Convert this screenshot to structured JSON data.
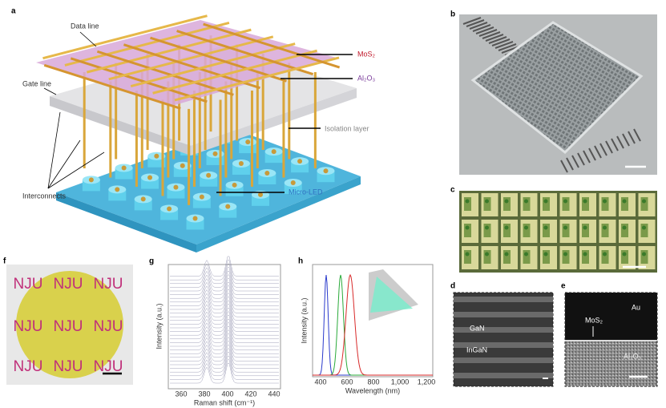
{
  "figure": {
    "panel_a": {
      "label": "a",
      "data_line": "Data line",
      "gate_line": "Gate line",
      "interconnects": "Interconnects",
      "mos2": "MoS₂",
      "al2o3": "Al₂O₃",
      "isolation": "Isolation layer",
      "micro_led": "Micro-LED"
    },
    "panel_b": {
      "label": "b"
    },
    "panel_c": {
      "label": "c"
    },
    "panel_d": {
      "label": "d",
      "gan": "GaN",
      "ingan": "InGaN"
    },
    "panel_e": {
      "label": "e",
      "au": "Au",
      "mos2": "MoS₂",
      "al2o3": "Al₂O₃"
    },
    "panel_f": {
      "label": "f",
      "logo": "NJU"
    },
    "panel_g": {
      "label": "g",
      "ylabel": "Intensity (a.u.)",
      "xlabel": "Raman shift (cm⁻¹)",
      "xticks": [
        "360",
        "380",
        "400",
        "420",
        "440"
      ]
    },
    "panel_h": {
      "label": "h",
      "ylabel": "Intensity (a.u.)",
      "xlabel": "Wavelength (nm)",
      "xticks": [
        "400",
        "600",
        "800",
        "1,000",
        "1,200"
      ]
    }
  }
}
